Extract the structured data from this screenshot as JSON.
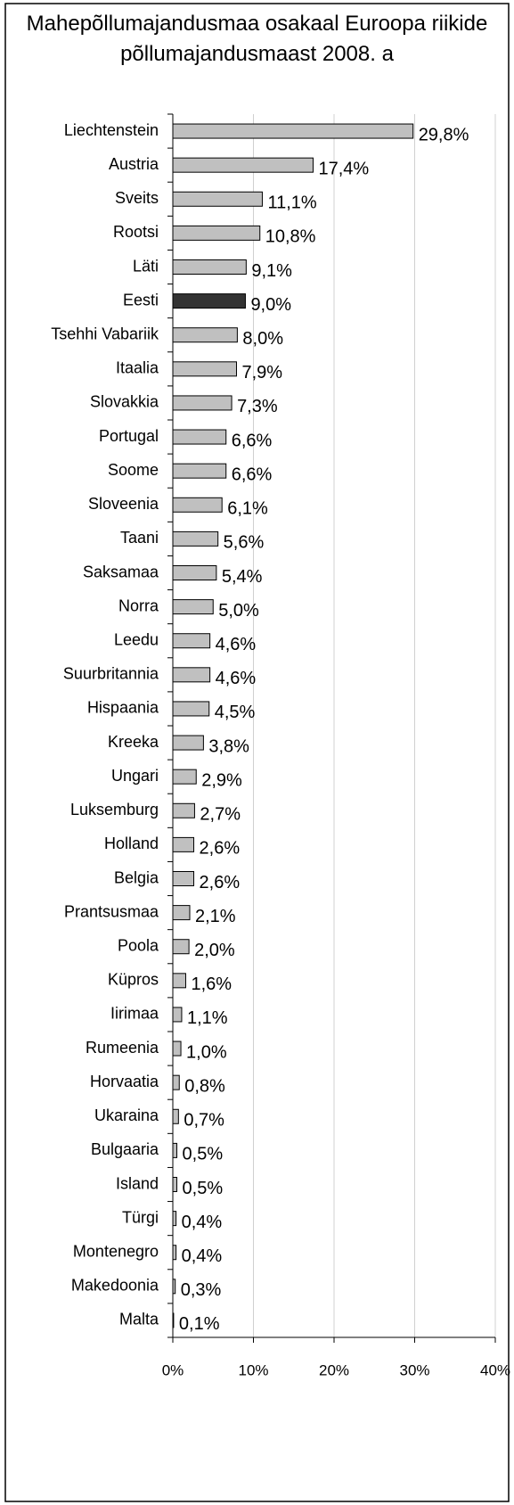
{
  "chart_data": {
    "type": "bar",
    "orientation": "horizontal",
    "title": "Mahepõllumajandusmaa osakaal Euroopa riikide põllumajandusmaast 2008. a",
    "categories": [
      "Liechtenstein",
      "Austria",
      "Sveits",
      "Rootsi",
      "Läti",
      "Eesti",
      "Tsehhi Vabariik",
      "Itaalia",
      "Slovakkia",
      "Portugal",
      "Soome",
      "Sloveenia",
      "Taani",
      "Saksamaa",
      "Norra",
      "Leedu",
      "Suurbritannia",
      "Hispaania",
      "Kreeka",
      "Ungari",
      "Luksemburg",
      "Holland",
      "Belgia",
      "Prantsusmaa",
      "Poola",
      "Küpros",
      "Iirimaa",
      "Rumeenia",
      "Horvaatia",
      "Ukaraina",
      "Bulgaaria",
      "Island",
      "Türgi",
      "Montenegro",
      "Makedoonia",
      "Malta"
    ],
    "values": [
      29.8,
      17.4,
      11.1,
      10.8,
      9.1,
      9.0,
      8.0,
      7.9,
      7.3,
      6.6,
      6.6,
      6.1,
      5.6,
      5.4,
      5.0,
      4.6,
      4.6,
      4.5,
      3.8,
      2.9,
      2.7,
      2.6,
      2.6,
      2.1,
      2.0,
      1.6,
      1.1,
      1.0,
      0.8,
      0.7,
      0.5,
      0.5,
      0.4,
      0.4,
      0.3,
      0.1
    ],
    "value_labels": [
      "29,8%",
      "17,4%",
      "11,1%",
      "10,8%",
      "9,1%",
      "9,0%",
      "8,0%",
      "7,9%",
      "7,3%",
      "6,6%",
      "6,6%",
      "6,1%",
      "5,6%",
      "5,4%",
      "5,0%",
      "4,6%",
      "4,6%",
      "4,5%",
      "3,8%",
      "2,9%",
      "2,7%",
      "2,6%",
      "2,6%",
      "2,1%",
      "2,0%",
      "1,6%",
      "1,1%",
      "1,0%",
      "0,8%",
      "0,7%",
      "0,5%",
      "0,5%",
      "0,4%",
      "0,4%",
      "0,3%",
      "0,1%"
    ],
    "colors": [
      "#c0c0c0",
      "#c0c0c0",
      "#c0c0c0",
      "#c0c0c0",
      "#c0c0c0",
      "#333333",
      "#c0c0c0",
      "#c0c0c0",
      "#c0c0c0",
      "#c0c0c0",
      "#c0c0c0",
      "#c0c0c0",
      "#c0c0c0",
      "#c0c0c0",
      "#c0c0c0",
      "#c0c0c0",
      "#c0c0c0",
      "#c0c0c0",
      "#c0c0c0",
      "#c0c0c0",
      "#c0c0c0",
      "#c0c0c0",
      "#c0c0c0",
      "#c0c0c0",
      "#c0c0c0",
      "#c0c0c0",
      "#c0c0c0",
      "#c0c0c0",
      "#c0c0c0",
      "#c0c0c0",
      "#c0c0c0",
      "#c0c0c0",
      "#c0c0c0",
      "#c0c0c0",
      "#c0c0c0",
      "#c0c0c0"
    ],
    "xlim": [
      0,
      40
    ],
    "xticks": [
      {
        "value": 0,
        "label": "0%"
      },
      {
        "value": 10,
        "label": "10%"
      },
      {
        "value": 20,
        "label": "20%"
      },
      {
        "value": 30,
        "label": "30%"
      },
      {
        "value": 40,
        "label": "40%"
      }
    ],
    "grid": true
  }
}
